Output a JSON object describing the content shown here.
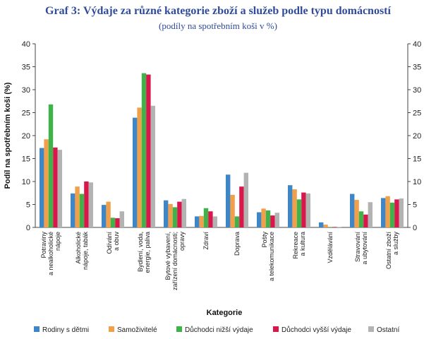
{
  "chart_data": {
    "type": "bar",
    "title": "Graf 3: Výdaje za různé kategorie zboží a služeb podle typu domácností",
    "subtitle": "(podíly na spotřebním koši v %)",
    "xlabel": "Kategorie",
    "ylabel": "Podíl na spotřebním koši (%)",
    "ylim": [
      0,
      40
    ],
    "yticks": [
      0,
      5,
      10,
      15,
      20,
      25,
      30,
      35,
      40
    ],
    "grid": false,
    "legend_position": "bottom",
    "categories": [
      [
        "Potraviny",
        "a nealkoholické",
        "nápoje"
      ],
      [
        "Alkoholické",
        "nápoje, tabák"
      ],
      [
        "Odívání",
        "a obuv"
      ],
      [
        "Bydlení, voda,",
        "energie, paliva"
      ],
      [
        "Bytové vybavení,",
        "zařízení domácnosti;",
        "opravy"
      ],
      [
        "Zdraví"
      ],
      [
        "Doprava"
      ],
      [
        "Pošty",
        "a telekomunikace"
      ],
      [
        "Rekreace",
        "a kultura"
      ],
      [
        "Vzdělávání"
      ],
      [
        "Stravování",
        "a ubytování"
      ],
      [
        "Ostatní zboží",
        "a služby"
      ]
    ],
    "series": [
      {
        "name": "Rodiny s dětmi",
        "color": "#3f86c6",
        "values": [
          17.3,
          7.4,
          4.9,
          23.9,
          5.9,
          2.4,
          11.5,
          3.3,
          9.2,
          1.1,
          7.3,
          6.4
        ]
      },
      {
        "name": "Samoživitelé",
        "color": "#f0a04b",
        "values": [
          19.2,
          8.9,
          5.6,
          26.1,
          5.1,
          2.5,
          7.1,
          4.1,
          8.3,
          0.6,
          6.0,
          6.8
        ]
      },
      {
        "name": "Důchodci nižší výdaje",
        "color": "#3fb34a",
        "values": [
          26.8,
          7.3,
          2.1,
          33.6,
          4.4,
          4.2,
          2.4,
          3.7,
          6.1,
          0.1,
          3.5,
          5.4
        ]
      },
      {
        "name": "Důchodci vyšší výdaje",
        "color": "#d9174a",
        "values": [
          17.4,
          10.0,
          2.0,
          33.3,
          5.6,
          3.5,
          8.9,
          2.6,
          7.6,
          0.1,
          2.8,
          6.1
        ]
      },
      {
        "name": "Ostatní",
        "color": "#b3b3b3",
        "values": [
          16.9,
          9.8,
          3.5,
          26.5,
          6.2,
          2.4,
          11.9,
          3.2,
          7.4,
          0.1,
          5.5,
          6.3
        ]
      }
    ]
  }
}
